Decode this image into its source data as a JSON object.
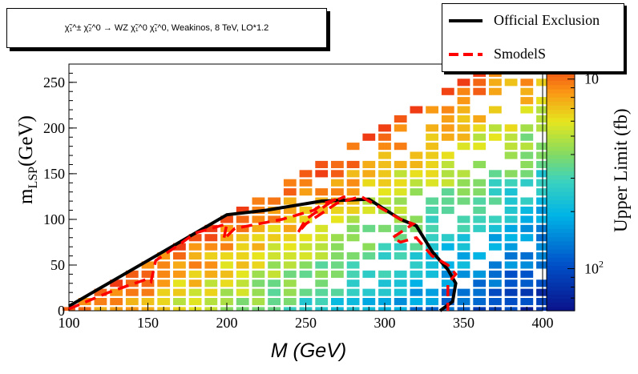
{
  "title": "χ̃₁^± χ̃₂^0 → WZ χ̃₁^0 χ̃₁^0, Weakinos, 8 TeV, LO*1.2",
  "legend": {
    "official_label": "Official Exclusion",
    "smodels_label": "SmodelS",
    "official_color": "#000000",
    "smodels_color": "#ff0000"
  },
  "axes": {
    "xlabel": "M (GeV)",
    "ylabel_main": "m",
    "ylabel_sub": "LSP",
    "ylabel_unit": "(GeV)",
    "zlabel": "Upper Limit (fb)"
  },
  "chart_data": {
    "type": "heatmap",
    "xlim": [
      100,
      400
    ],
    "ylim": [
      0,
      270
    ],
    "xticks": [
      100,
      150,
      200,
      250,
      300,
      350,
      400
    ],
    "yticks": [
      0,
      50,
      100,
      150,
      200,
      250
    ],
    "z_scale": "log",
    "z_range": [
      60,
      1200
    ],
    "z_tick_labels": [
      {
        "value": 100,
        "label": "10",
        "exp": "2"
      },
      {
        "value": 1000,
        "label": "10",
        "exp": ""
      }
    ],
    "heatmap_bins": {
      "mass_step": 10,
      "lsp_step": 10,
      "ul_at_100_0": 1000,
      "ul_at_400_0": 70
    },
    "official_exclusion": [
      [
        100,
        5
      ],
      [
        150,
        55
      ],
      [
        200,
        105
      ],
      [
        225,
        110
      ],
      [
        260,
        120
      ],
      [
        290,
        122
      ],
      [
        310,
        100
      ],
      [
        320,
        93
      ],
      [
        330,
        65
      ],
      [
        340,
        45
      ],
      [
        345,
        30
      ],
      [
        343,
        10
      ],
      [
        335,
        0
      ]
    ],
    "smodels_contour": [
      [
        100,
        2
      ],
      [
        125,
        20
      ],
      [
        150,
        35
      ],
      [
        152,
        32
      ],
      [
        155,
        55
      ],
      [
        172,
        75
      ],
      [
        180,
        85
      ],
      [
        200,
        95
      ],
      [
        198,
        78
      ],
      [
        205,
        90
      ],
      [
        235,
        100
      ],
      [
        255,
        110
      ],
      [
        262,
        118
      ],
      [
        275,
        125
      ],
      [
        265,
        118
      ],
      [
        250,
        100
      ],
      [
        245,
        85
      ],
      [
        250,
        95
      ],
      [
        270,
        118
      ],
      [
        285,
        125
      ],
      [
        300,
        110
      ],
      [
        310,
        100
      ],
      [
        318,
        95
      ],
      [
        305,
        80
      ],
      [
        310,
        75
      ],
      [
        320,
        80
      ],
      [
        330,
        60
      ],
      [
        340,
        50
      ],
      [
        345,
        40
      ],
      [
        340,
        30
      ],
      [
        340,
        0
      ]
    ]
  }
}
